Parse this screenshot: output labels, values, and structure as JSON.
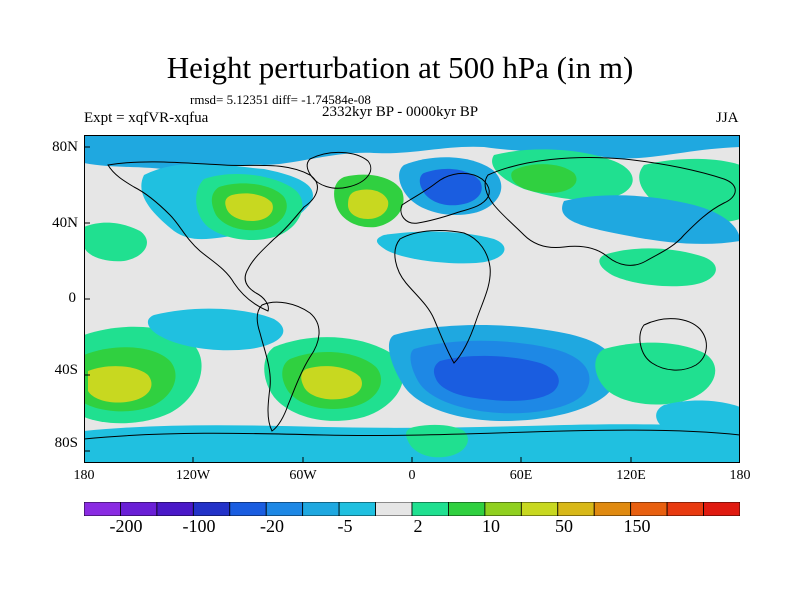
{
  "title": "Height perturbation at 500 hPa (in m)",
  "stats_line": "rmsd= 5.12351 diff= -1.74584e-08",
  "experiment_label": "Expt = xqfVR-xqfua",
  "period_label": "2332kyr BP - 0000kyr BP",
  "season_label": "JJA",
  "lat_labels": [
    "80N",
    "40N",
    "0",
    "40S",
    "80S"
  ],
  "lon_labels": [
    "180",
    "120W",
    "60W",
    "0",
    "60E",
    "120E",
    "180"
  ],
  "colorbar": {
    "labels": [
      "-200",
      "-100",
      "-20",
      "-5",
      "2",
      "10",
      "50",
      "150"
    ],
    "colors": [
      "#8a2be2",
      "#6a1fd6",
      "#4a18c8",
      "#2332c8",
      "#1a5de0",
      "#1e88e5",
      "#1fa8e0",
      "#20c0e0",
      "#e6e6e6",
      "#20e090",
      "#30d040",
      "#90d020",
      "#c8d820",
      "#d8b818",
      "#e08a10",
      "#e86010",
      "#e83a10",
      "#e01a10"
    ]
  },
  "field_colors": {
    "ocean": "#e6e6e6",
    "strong_negative": "#1a5de0",
    "negative": "#1fa8e0",
    "weak_negative": "#20c0e0",
    "weak_positive": "#20e090",
    "positive": "#30d040",
    "strong_positive": "#c8d820"
  }
}
